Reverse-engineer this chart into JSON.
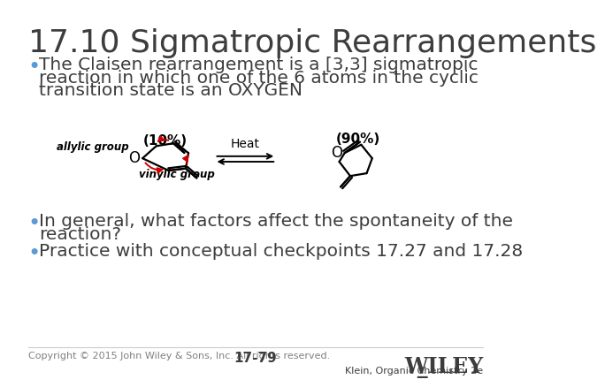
{
  "title": "17.10 Sigmatropic Rearrangements",
  "title_fontsize": 26,
  "title_color": "#3d3d3d",
  "background_color": "#ffffff",
  "bullet1_line1": "The Claisen rearrangement is a [3,3] sigmatropic",
  "bullet1_line2": "reaction in which one of the 6 atoms in the cyclic",
  "bullet1_line3": "transition state is an OXYGEN",
  "bullet2_line1": "In general, what factors affect the spontaneity of the",
  "bullet2_line2": "reaction?",
  "bullet3": "Practice with conceptual checkpoints 17.27 and 17.28",
  "bullet_fontsize": 14.5,
  "bullet_color": "#3d3d3d",
  "bullet_dot_color": "#5b9bd5",
  "footer_copyright": "Copyright © 2015 John Wiley & Sons, Inc. All rights reserved.",
  "footer_page": "17-79",
  "footer_publisher": "Klein, Organic Chemistry 2e",
  "footer_fontsize": 8,
  "wiley_fontsize": 17,
  "vinylic_label": "vinylic group",
  "allylic_label": "allylic group",
  "heat_label": "Heat",
  "pct_left": "(10%)",
  "pct_right": "(90%)"
}
